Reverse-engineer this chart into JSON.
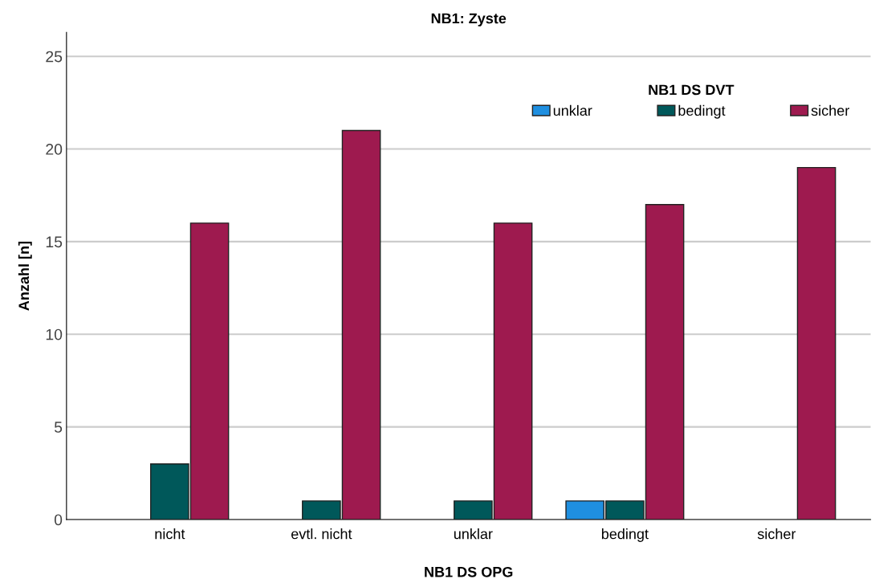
{
  "chart_data": {
    "type": "bar",
    "title": "NB1: Zyste",
    "xlabel": "NB1 DS OPG",
    "ylabel": "Anzahl [n]",
    "legend_title": "NB1 DS DVT",
    "categories": [
      "nicht",
      "evtl. nicht",
      "unklar",
      "bedingt",
      "sicher"
    ],
    "series": [
      {
        "name": "unklar",
        "color": "#1f8fe0",
        "values": [
          null,
          null,
          null,
          1,
          null
        ]
      },
      {
        "name": "bedingt",
        "color": "#00585a",
        "values": [
          3,
          1,
          1,
          1,
          null
        ]
      },
      {
        "name": "sicher",
        "color": "#9e1a4f",
        "values": [
          16,
          21,
          16,
          17,
          19
        ]
      }
    ],
    "ylim": [
      0,
      26.3
    ],
    "yticks": [
      0,
      5,
      10,
      15,
      20,
      25
    ],
    "grid": "y",
    "legend": "top right"
  }
}
